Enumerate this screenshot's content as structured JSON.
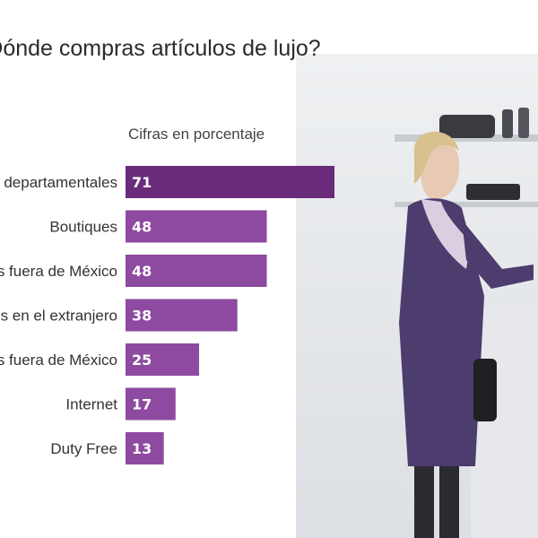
{
  "chart_data": {
    "type": "bar",
    "orientation": "horizontal",
    "title": "¿Dónde compras artículos de lujo?",
    "subtitle": "Cifras en porcentaje",
    "categories": [
      "Tiendas departamentales",
      "Boutiques",
      "Tiendas fuera de México",
      "Boutiques en el extranjero",
      "Outlets fuera de México",
      "Internet",
      "Duty Free"
    ],
    "values": [
      71,
      48,
      48,
      38,
      25,
      17,
      13
    ],
    "xlim": [
      0,
      100
    ],
    "grid": false,
    "legend": "none",
    "colors": {
      "top_bar": "#6a2c7a",
      "bar": "#8d4aa0",
      "value_text": "#ffffff"
    }
  }
}
